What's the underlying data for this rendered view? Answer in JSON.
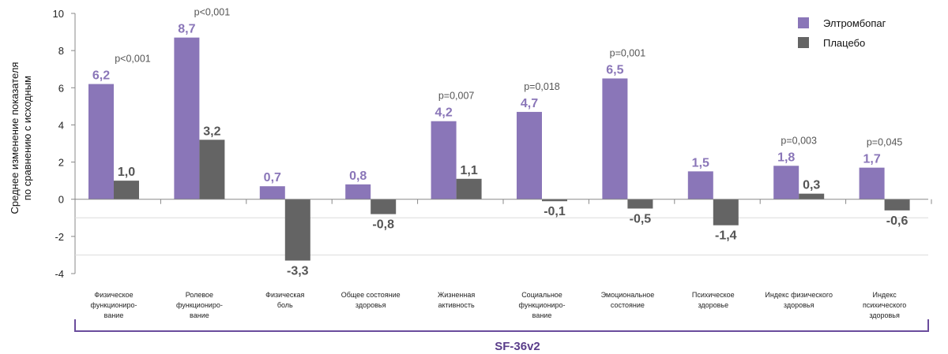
{
  "chart_data": {
    "type": "bar",
    "ylabel": "Среднее изменение показателя по сравнению с исходным",
    "ylim": [
      -4,
      10
    ],
    "yticks": [
      -4,
      -2,
      0,
      2,
      4,
      6,
      8,
      10
    ],
    "categories": [
      [
        "Физическое",
        "функциониро-",
        "вание"
      ],
      [
        "Ролевое",
        "функциониро-",
        "вание"
      ],
      [
        "Физическая",
        "боль"
      ],
      [
        "Общее состояние",
        "здоровья"
      ],
      [
        "Жизненная",
        "активность"
      ],
      [
        "Социальное",
        "функциониро-",
        "вание"
      ],
      [
        "Эмоциональное",
        "состояние"
      ],
      [
        "Психическое",
        "здоровье"
      ],
      [
        "Индекс физического",
        "здоровья"
      ],
      [
        "Индекс",
        "психического",
        "здоровья"
      ]
    ],
    "series": [
      {
        "name": "Элтромбопаг",
        "color": "#8a76b8",
        "values": [
          6.2,
          8.7,
          0.7,
          0.8,
          4.2,
          4.7,
          6.5,
          1.5,
          1.8,
          1.7
        ],
        "labels": [
          "6,2",
          "8,7",
          "0,7",
          "0,8",
          "4,2",
          "4,7",
          "6,5",
          "1,5",
          "1,8",
          "1,7"
        ]
      },
      {
        "name": "Плацебо",
        "color": "#646464",
        "values": [
          1.0,
          3.2,
          -3.3,
          -0.8,
          1.1,
          -0.1,
          -0.5,
          -1.4,
          0.3,
          -0.6
        ],
        "labels": [
          "1,0",
          "3,2",
          "-3,3",
          "-0,8",
          "1,1",
          "-0,1",
          "-0,5",
          "-1,4",
          "0,3",
          "-0,6"
        ]
      }
    ],
    "pvalues": [
      "p<0,001",
      "p<0,001",
      "",
      "",
      "p=0,007",
      "p=0,018",
      "p=0,001",
      "",
      "p=0,003",
      "p=0,045"
    ],
    "group_label": "SF-36v2",
    "legend_position": "top-right",
    "grid": false
  }
}
